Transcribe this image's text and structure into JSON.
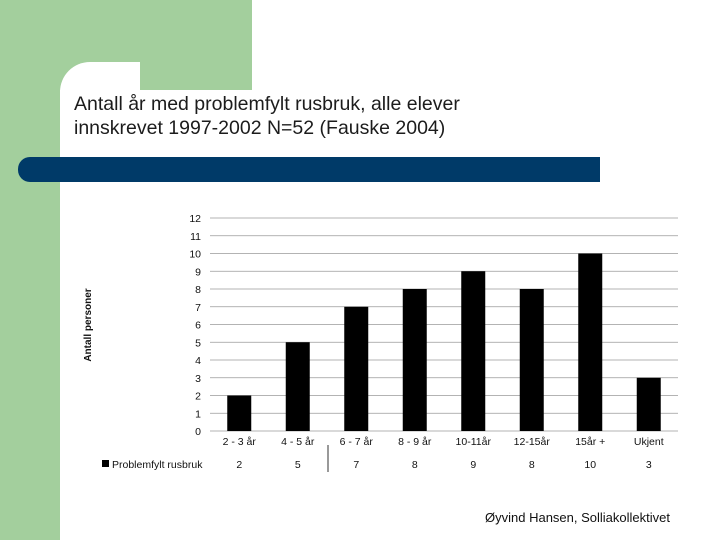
{
  "slide": {
    "title_line1": "Antall år med problemfylt rusbruk, alle elever",
    "title_line2": "innskrevet 1997-2002 N=52 (Fauske 2004)",
    "footer": "Øyvind Hansen, Solliakollektivet",
    "colors": {
      "green": "#a3cf9d",
      "navy": "#003a68",
      "bar": "#000000"
    }
  },
  "chart_data": {
    "type": "bar",
    "categories": [
      "2 - 3 år",
      "4 - 5 år",
      "6 - 7 år",
      "8 - 9 år",
      "10-11år",
      "12-15år",
      "15år +",
      "Ukjent"
    ],
    "series": [
      {
        "name": "Problemfylt rusbruk",
        "values": [
          2,
          5,
          7,
          8,
          9,
          8,
          10,
          3
        ]
      }
    ],
    "title": "",
    "xlabel": "",
    "ylabel": "Antall personer",
    "ylim": [
      0,
      12
    ],
    "yticks": [
      0,
      1,
      2,
      3,
      4,
      5,
      6,
      7,
      8,
      9,
      10,
      11,
      12
    ],
    "grid": true,
    "legend": "bottom-left data table"
  }
}
